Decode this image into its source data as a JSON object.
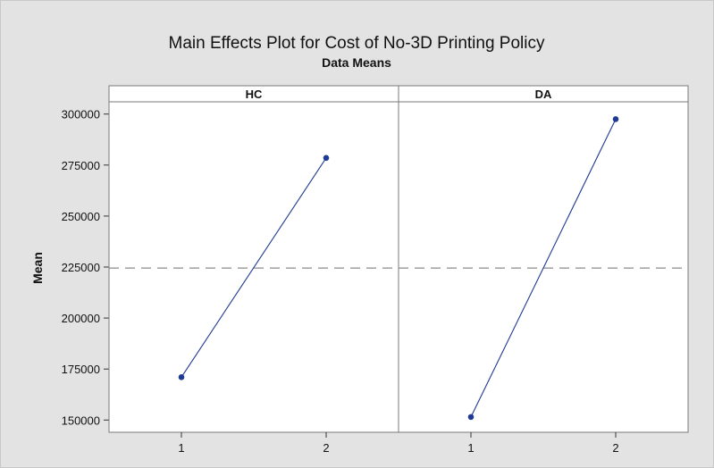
{
  "chart_data": {
    "type": "line",
    "title": "Main Effects Plot for Cost of No-3D Printing Policy",
    "subtitle": "Data Means",
    "ylabel": "Mean",
    "ylim": [
      144000,
      306000
    ],
    "yticks": [
      150000,
      175000,
      200000,
      225000,
      250000,
      275000,
      300000
    ],
    "overall_mean": 224500,
    "series_color": "#1f3a93",
    "reference_line_color": "#8c8c8c",
    "panels": [
      {
        "name": "HC",
        "x": [
          "1",
          "2"
        ],
        "values": [
          171000,
          278500
        ]
      },
      {
        "name": "DA",
        "x": [
          "1",
          "2"
        ],
        "values": [
          151500,
          297500
        ]
      }
    ]
  }
}
